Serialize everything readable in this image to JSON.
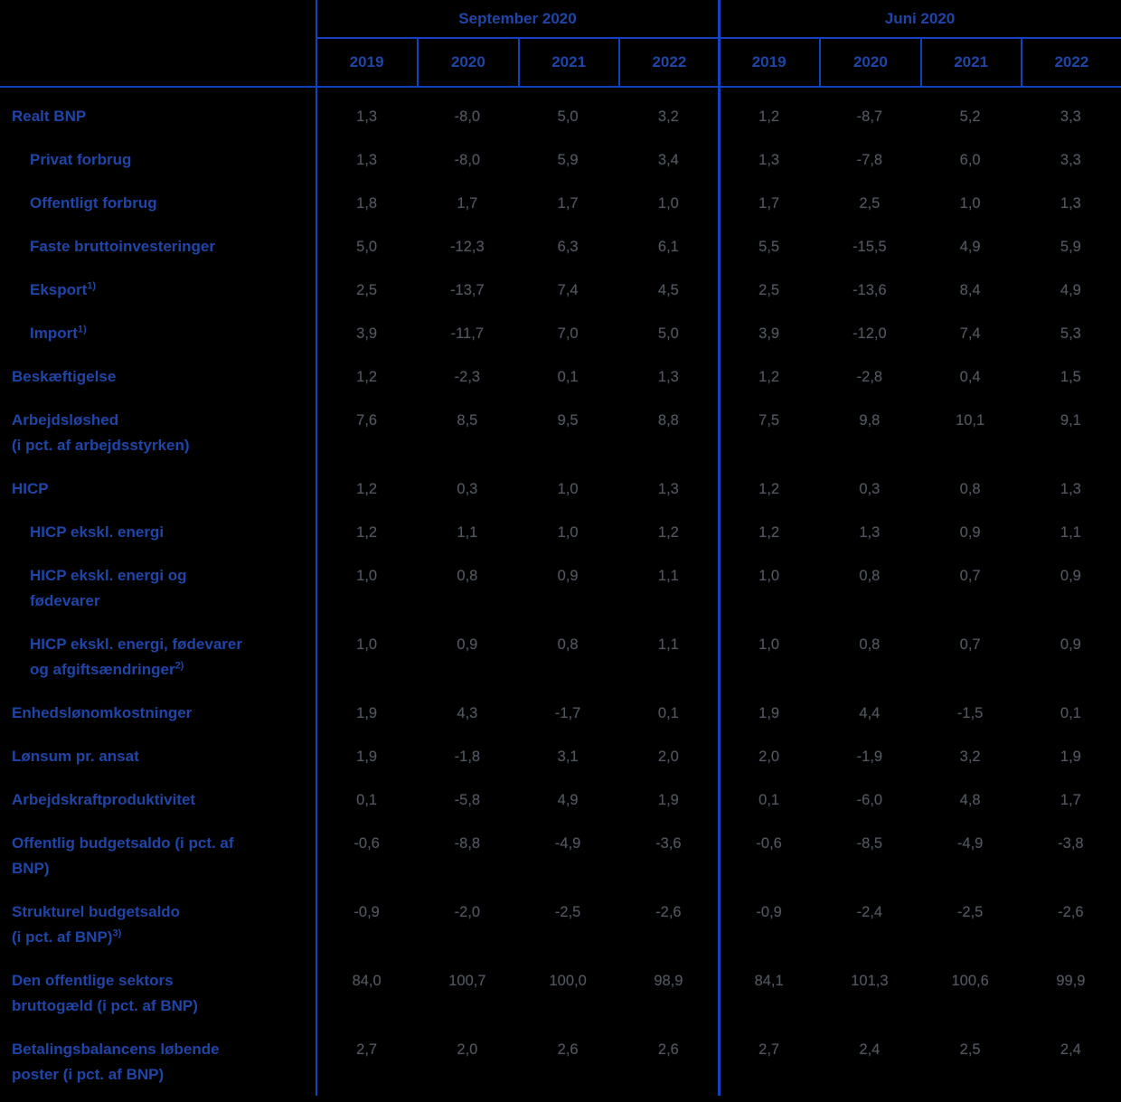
{
  "colors": {
    "background": "#000000",
    "grid_line": "#1342c0",
    "label_text": "#2045a8",
    "value_text": "#52565e"
  },
  "chart_data": {
    "type": "table",
    "title": "",
    "column_groups": [
      {
        "label": "September 2020",
        "years": [
          "2019",
          "2020",
          "2021",
          "2022"
        ]
      },
      {
        "label": "Juni 2020",
        "years": [
          "2019",
          "2020",
          "2021",
          "2022"
        ]
      }
    ],
    "rows": [
      {
        "label_lines": [
          "Realt BNP"
        ],
        "sup": null,
        "indent": false,
        "september": [
          "1,3",
          "-8,0",
          "5,0",
          "3,2"
        ],
        "juni": [
          "1,2",
          "-8,7",
          "5,2",
          "3,3"
        ]
      },
      {
        "label_lines": [
          "Privat forbrug"
        ],
        "sup": null,
        "indent": true,
        "september": [
          "1,3",
          "-8,0",
          "5,9",
          "3,4"
        ],
        "juni": [
          "1,3",
          "-7,8",
          "6,0",
          "3,3"
        ]
      },
      {
        "label_lines": [
          "Offentligt forbrug"
        ],
        "sup": null,
        "indent": true,
        "september": [
          "1,8",
          "1,7",
          "1,7",
          "1,0"
        ],
        "juni": [
          "1,7",
          "2,5",
          "1,0",
          "1,3"
        ]
      },
      {
        "label_lines": [
          "Faste bruttoinvesteringer"
        ],
        "sup": null,
        "indent": true,
        "september": [
          "5,0",
          "-12,3",
          "6,3",
          "6,1"
        ],
        "juni": [
          "5,5",
          "-15,5",
          "4,9",
          "5,9"
        ]
      },
      {
        "label_lines": [
          "Eksport"
        ],
        "sup": "1)",
        "indent": true,
        "september": [
          "2,5",
          "-13,7",
          "7,4",
          "4,5"
        ],
        "juni": [
          "2,5",
          "-13,6",
          "8,4",
          "4,9"
        ]
      },
      {
        "label_lines": [
          "Import"
        ],
        "sup": "1)",
        "indent": true,
        "september": [
          "3,9",
          "-11,7",
          "7,0",
          "5,0"
        ],
        "juni": [
          "3,9",
          "-12,0",
          "7,4",
          "5,3"
        ]
      },
      {
        "label_lines": [
          "Beskæftigelse"
        ],
        "sup": null,
        "indent": false,
        "september": [
          "1,2",
          "-2,3",
          "0,1",
          "1,3"
        ],
        "juni": [
          "1,2",
          "-2,8",
          "0,4",
          "1,5"
        ]
      },
      {
        "label_lines": [
          "Arbejdsløshed",
          "(i pct. af arbejdsstyrken)"
        ],
        "sup": null,
        "indent": false,
        "september": [
          "7,6",
          "8,5",
          "9,5",
          "8,8"
        ],
        "juni": [
          "7,5",
          "9,8",
          "10,1",
          "9,1"
        ]
      },
      {
        "label_lines": [
          "HICP"
        ],
        "sup": null,
        "indent": false,
        "september": [
          "1,2",
          "0,3",
          "1,0",
          "1,3"
        ],
        "juni": [
          "1,2",
          "0,3",
          "0,8",
          "1,3"
        ]
      },
      {
        "label_lines": [
          "HICP ekskl. energi"
        ],
        "sup": null,
        "indent": true,
        "september": [
          "1,2",
          "1,1",
          "1,0",
          "1,2"
        ],
        "juni": [
          "1,2",
          "1,3",
          "0,9",
          "1,1"
        ]
      },
      {
        "label_lines": [
          "HICP ekskl. energi og",
          "fødevarer"
        ],
        "sup": null,
        "indent": true,
        "september": [
          "1,0",
          "0,8",
          "0,9",
          "1,1"
        ],
        "juni": [
          "1,0",
          "0,8",
          "0,7",
          "0,9"
        ]
      },
      {
        "label_lines": [
          "HICP ekskl. energi, fødevarer",
          "og afgiftsændringer"
        ],
        "sup": "2)",
        "indent": true,
        "september": [
          "1,0",
          "0,9",
          "0,8",
          "1,1"
        ],
        "juni": [
          "1,0",
          "0,8",
          "0,7",
          "0,9"
        ]
      },
      {
        "label_lines": [
          "Enhedslønomkostninger"
        ],
        "sup": null,
        "indent": false,
        "september": [
          "1,9",
          "4,3",
          "-1,7",
          "0,1"
        ],
        "juni": [
          "1,9",
          "4,4",
          "-1,5",
          "0,1"
        ]
      },
      {
        "label_lines": [
          "Lønsum pr. ansat"
        ],
        "sup": null,
        "indent": false,
        "september": [
          "1,9",
          "-1,8",
          "3,1",
          "2,0"
        ],
        "juni": [
          "2,0",
          "-1,9",
          "3,2",
          "1,9"
        ]
      },
      {
        "label_lines": [
          "Arbejdskraftproduktivitet"
        ],
        "sup": null,
        "indent": false,
        "september": [
          "0,1",
          "-5,8",
          "4,9",
          "1,9"
        ],
        "juni": [
          "0,1",
          "-6,0",
          "4,8",
          "1,7"
        ]
      },
      {
        "label_lines": [
          "Offentlig budgetsaldo (i pct. af",
          "BNP)"
        ],
        "sup": null,
        "indent": false,
        "september": [
          "-0,6",
          "-8,8",
          "-4,9",
          "-3,6"
        ],
        "juni": [
          "-0,6",
          "-8,5",
          "-4,9",
          "-3,8"
        ]
      },
      {
        "label_lines": [
          "Strukturel budgetsaldo",
          "(i pct. af BNP)"
        ],
        "sup": "3)",
        "indent": false,
        "september": [
          "-0,9",
          "-2,0",
          "-2,5",
          "-2,6"
        ],
        "juni": [
          "-0,9",
          "-2,4",
          "-2,5",
          "-2,6"
        ]
      },
      {
        "label_lines": [
          "Den offentlige sektors",
          "bruttogæld (i pct. af BNP)"
        ],
        "sup": null,
        "indent": false,
        "september": [
          "84,0",
          "100,7",
          "100,0",
          "98,9"
        ],
        "juni": [
          "84,1",
          "101,3",
          "100,6",
          "99,9"
        ]
      },
      {
        "label_lines": [
          "Betalingsbalancens løbende",
          "poster (i pct. af BNP)"
        ],
        "sup": null,
        "indent": false,
        "september": [
          "2,7",
          "2,0",
          "2,6",
          "2,6"
        ],
        "juni": [
          "2,7",
          "2,4",
          "2,5",
          "2,4"
        ]
      }
    ]
  }
}
